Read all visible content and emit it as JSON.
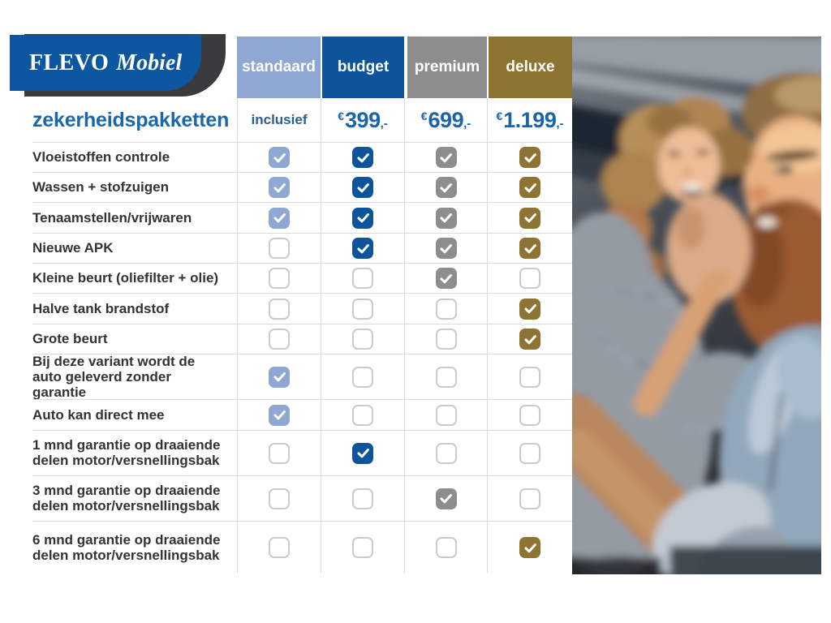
{
  "logo": {
    "brand_primary": "FLEVO",
    "brand_secondary": "Mobiel"
  },
  "page_title": "zekerheidspakketten",
  "columns": [
    {
      "label": "standaard",
      "color": "#8fa7d3",
      "price_text": "inclusief"
    },
    {
      "label": "budget",
      "color": "#0d549b",
      "currency": "€",
      "price_amount": "399",
      "price_suffix": ",-"
    },
    {
      "label": "premium",
      "color": "#8d8d8d",
      "currency": "€",
      "price_amount": "699",
      "price_suffix": ",-"
    },
    {
      "label": "deluxe",
      "color": "#8d7432",
      "currency": "€",
      "price_amount": "1.199",
      "price_suffix": ",-"
    }
  ],
  "rows": [
    {
      "label": "Vloeistoffen controle",
      "checks": [
        true,
        true,
        true,
        true
      ]
    },
    {
      "label": "Wassen + stofzuigen",
      "checks": [
        true,
        true,
        true,
        true
      ]
    },
    {
      "label": "Tenaamstellen/vrijwaren",
      "checks": [
        true,
        true,
        true,
        true
      ]
    },
    {
      "label": "Nieuwe APK",
      "checks": [
        false,
        true,
        true,
        true
      ]
    },
    {
      "label": "Kleine beurt (oliefilter + olie)",
      "checks": [
        false,
        false,
        true,
        false
      ]
    },
    {
      "label": "Halve tank brandstof",
      "checks": [
        false,
        false,
        false,
        true
      ]
    },
    {
      "label": "Grote beurt",
      "checks": [
        false,
        false,
        false,
        true
      ]
    },
    {
      "label": "Bij deze variant wordt de auto geleverd zonder garantie",
      "checks": [
        true,
        false,
        false,
        false
      ]
    },
    {
      "label": "Auto kan direct mee",
      "checks": [
        true,
        false,
        false,
        false
      ]
    },
    {
      "label": "1 mnd garantie op draaiende delen motor/versnellingsbak",
      "checks": [
        false,
        true,
        false,
        false
      ]
    },
    {
      "label": "3 mnd garantie op draaiende delen motor/versnellingsbak",
      "checks": [
        false,
        false,
        true,
        false
      ]
    },
    {
      "label": "6 mnd garantie op draaiende delen motor/versnellingsbak",
      "checks": [
        false,
        false,
        false,
        true
      ]
    }
  ],
  "theme": {
    "logo_blue": "#0d57a0",
    "logo_dark": "#3b3b3e",
    "title_blue": "#1a67ad",
    "price_blue": "#1b64a8",
    "inclusief_blue": "#2a5f8e",
    "label_text": "#333333",
    "grid_line": "#dcdcdc",
    "checkbox_border": "#cbcbcb"
  }
}
